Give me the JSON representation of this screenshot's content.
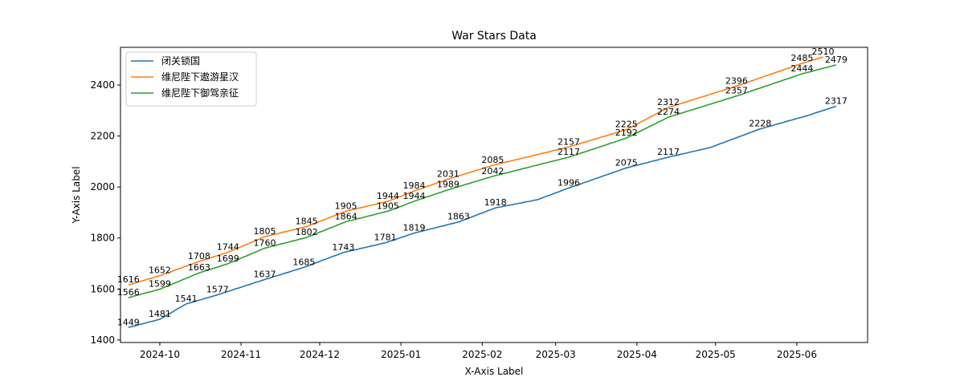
{
  "chart_data": {
    "type": "line",
    "title": "War Stars Data",
    "xlabel": "X-Axis Label",
    "ylabel": "Y-Axis Label",
    "xlim": [
      "2024-09-16",
      "2025-06-28"
    ],
    "ylim": [
      1390,
      2548
    ],
    "x_ticks": [
      "2024-10",
      "2024-11",
      "2024-12",
      "2025-01",
      "2025-02",
      "2025-03",
      "2025-04",
      "2025-05",
      "2025-06"
    ],
    "y_ticks": [
      1400,
      1600,
      1800,
      2000,
      2200,
      2400
    ],
    "grid": false,
    "legend_position": "top-left",
    "series": [
      {
        "name": "闭关锁国",
        "color": "#1f77b4",
        "points": [
          [
            "2024-09-19",
            1449
          ],
          [
            "2024-10-01",
            1481
          ],
          [
            "2024-10-11",
            1541
          ],
          [
            "2024-10-23",
            1577
          ],
          [
            "2024-11-10",
            1637
          ],
          [
            "2024-11-25",
            1685
          ],
          [
            "2024-12-10",
            1743
          ],
          [
            "2024-12-26",
            1781
          ],
          [
            "2025-01-06",
            1819
          ],
          [
            "2025-01-23",
            1863
          ],
          [
            "2025-02-06",
            1918
          ],
          [
            "2025-02-22",
            1950
          ],
          [
            "2025-03-06",
            1996
          ],
          [
            "2025-03-28",
            2075
          ],
          [
            "2025-04-13",
            2117
          ],
          [
            "2025-04-29",
            2155
          ],
          [
            "2025-05-18",
            2228
          ],
          [
            "2025-06-05",
            2280
          ],
          [
            "2025-06-16",
            2317
          ]
        ]
      },
      {
        "name": "维尼陛下遨游星汉",
        "color": "#ff7f0e",
        "points": [
          [
            "2024-09-19",
            1616
          ],
          [
            "2024-10-01",
            1652
          ],
          [
            "2024-10-16",
            1708
          ],
          [
            "2024-10-27",
            1744
          ],
          [
            "2024-11-10",
            1805
          ],
          [
            "2024-11-26",
            1845
          ],
          [
            "2024-12-11",
            1905
          ],
          [
            "2024-12-27",
            1944
          ],
          [
            "2025-01-06",
            1984
          ],
          [
            "2025-01-19",
            2031
          ],
          [
            "2025-02-05",
            2085
          ],
          [
            "2025-03-06",
            2157
          ],
          [
            "2025-03-28",
            2225
          ],
          [
            "2025-04-13",
            2312
          ],
          [
            "2025-05-09",
            2396
          ],
          [
            "2025-06-03",
            2485
          ],
          [
            "2025-06-11",
            2510
          ]
        ]
      },
      {
        "name": "维尼陛下御驾亲征",
        "color": "#2ca02c",
        "points": [
          [
            "2024-09-19",
            1566
          ],
          [
            "2024-10-01",
            1599
          ],
          [
            "2024-10-16",
            1663
          ],
          [
            "2024-10-27",
            1699
          ],
          [
            "2024-11-10",
            1760
          ],
          [
            "2024-11-26",
            1802
          ],
          [
            "2024-12-11",
            1864
          ],
          [
            "2024-12-27",
            1905
          ],
          [
            "2025-01-06",
            1944
          ],
          [
            "2025-01-19",
            1989
          ],
          [
            "2025-02-05",
            2042
          ],
          [
            "2025-03-06",
            2117
          ],
          [
            "2025-03-28",
            2192
          ],
          [
            "2025-04-13",
            2274
          ],
          [
            "2025-05-09",
            2357
          ],
          [
            "2025-06-03",
            2444
          ],
          [
            "2025-06-16",
            2479
          ]
        ]
      }
    ],
    "annotations": [
      {
        "series": 0,
        "date": "2024-09-19",
        "text": "1449"
      },
      {
        "series": 0,
        "date": "2024-10-01",
        "text": "1481"
      },
      {
        "series": 0,
        "date": "2024-10-11",
        "text": "1541"
      },
      {
        "series": 0,
        "date": "2024-10-23",
        "text": "1577"
      },
      {
        "series": 0,
        "date": "2024-11-10",
        "text": "1637"
      },
      {
        "series": 0,
        "date": "2024-11-25",
        "text": "1685"
      },
      {
        "series": 0,
        "date": "2024-12-10",
        "text": "1743"
      },
      {
        "series": 0,
        "date": "2024-12-26",
        "text": "1781"
      },
      {
        "series": 0,
        "date": "2025-01-06",
        "text": "1819"
      },
      {
        "series": 0,
        "date": "2025-01-23",
        "text": "1863"
      },
      {
        "series": 0,
        "date": "2025-02-06",
        "text": "1918"
      },
      {
        "series": 0,
        "date": "2025-03-06",
        "text": "1996"
      },
      {
        "series": 0,
        "date": "2025-03-28",
        "text": "2075"
      },
      {
        "series": 0,
        "date": "2025-04-13",
        "text": "2117"
      },
      {
        "series": 0,
        "date": "2025-05-18",
        "text": "2228"
      },
      {
        "series": 0,
        "date": "2025-06-16",
        "text": "2317"
      },
      {
        "series": 1,
        "date": "2024-09-19",
        "text": "1616"
      },
      {
        "series": 1,
        "date": "2024-10-01",
        "text": "1652"
      },
      {
        "series": 1,
        "date": "2024-10-16",
        "text": "1708"
      },
      {
        "series": 1,
        "date": "2024-10-27",
        "text": "1744"
      },
      {
        "series": 1,
        "date": "2024-11-10",
        "text": "1805"
      },
      {
        "series": 1,
        "date": "2024-11-26",
        "text": "1845"
      },
      {
        "series": 1,
        "date": "2024-12-11",
        "text": "1905"
      },
      {
        "series": 1,
        "date": "2024-12-27",
        "text": "1944"
      },
      {
        "series": 1,
        "date": "2025-01-06",
        "text": "1984"
      },
      {
        "series": 1,
        "date": "2025-01-19",
        "text": "2031"
      },
      {
        "series": 1,
        "date": "2025-02-05",
        "text": "2085"
      },
      {
        "series": 1,
        "date": "2025-03-06",
        "text": "2157"
      },
      {
        "series": 1,
        "date": "2025-03-28",
        "text": "2225"
      },
      {
        "series": 1,
        "date": "2025-04-13",
        "text": "2312"
      },
      {
        "series": 1,
        "date": "2025-05-09",
        "text": "2396"
      },
      {
        "series": 1,
        "date": "2025-06-03",
        "text": "2485"
      },
      {
        "series": 1,
        "date": "2025-06-11",
        "text": "2510"
      },
      {
        "series": 2,
        "date": "2024-09-19",
        "text": "1566"
      },
      {
        "series": 2,
        "date": "2024-10-01",
        "text": "1599"
      },
      {
        "series": 2,
        "date": "2024-10-16",
        "text": "1663"
      },
      {
        "series": 2,
        "date": "2024-10-27",
        "text": "1699"
      },
      {
        "series": 2,
        "date": "2024-11-10",
        "text": "1760"
      },
      {
        "series": 2,
        "date": "2024-11-26",
        "text": "1802"
      },
      {
        "series": 2,
        "date": "2024-12-11",
        "text": "1864"
      },
      {
        "series": 2,
        "date": "2024-12-27",
        "text": "1905"
      },
      {
        "series": 2,
        "date": "2025-01-06",
        "text": "1944"
      },
      {
        "series": 2,
        "date": "2025-01-19",
        "text": "1989"
      },
      {
        "series": 2,
        "date": "2025-02-05",
        "text": "2042"
      },
      {
        "series": 2,
        "date": "2025-03-06",
        "text": "2117"
      },
      {
        "series": 2,
        "date": "2025-03-28",
        "text": "2192"
      },
      {
        "series": 2,
        "date": "2025-04-13",
        "text": "2274"
      },
      {
        "series": 2,
        "date": "2025-05-09",
        "text": "2357"
      },
      {
        "series": 2,
        "date": "2025-06-03",
        "text": "2444"
      },
      {
        "series": 2,
        "date": "2025-06-16",
        "text": "2479"
      }
    ]
  }
}
